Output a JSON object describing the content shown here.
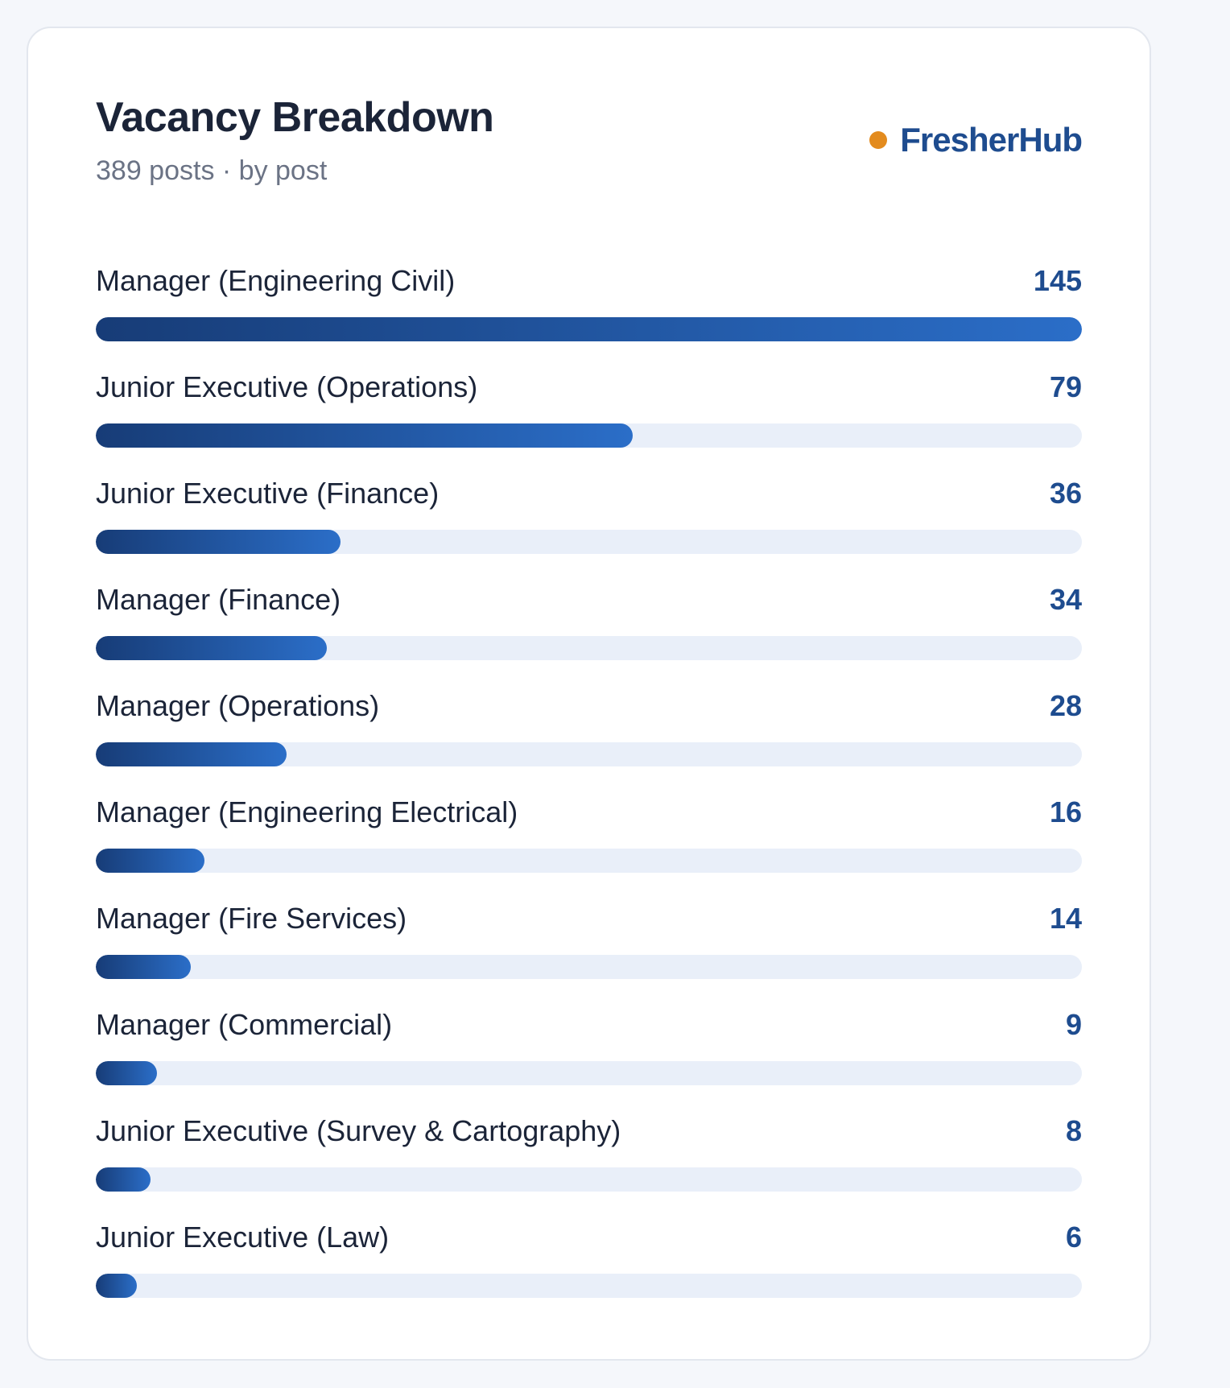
{
  "header": {
    "title": "Vacancy Breakdown",
    "subtitle": "389 posts · by post"
  },
  "brand": {
    "name": "FresherHub",
    "dot_color": "#e38b1e"
  },
  "colors": {
    "bar_start": "#173c77",
    "bar_end": "#2b6ec8",
    "track": "#e9eff9",
    "value_text": "#1e4c8f"
  },
  "chart_data": {
    "type": "bar",
    "orientation": "horizontal",
    "title": "Vacancy Breakdown",
    "subtitle": "389 posts · by post",
    "xlim": [
      0,
      145
    ],
    "categories": [
      "Manager (Engineering Civil)",
      "Junior Executive (Operations)",
      "Junior Executive (Finance)",
      "Manager (Finance)",
      "Manager (Operations)",
      "Manager (Engineering Electrical)",
      "Manager (Fire Services)",
      "Manager (Commercial)",
      "Junior Executive (Survey & Cartography)",
      "Junior Executive (Law)"
    ],
    "values": [
      145,
      79,
      36,
      34,
      28,
      16,
      14,
      9,
      8,
      6
    ],
    "value_labels": [
      "145",
      "79",
      "36",
      "34",
      "28",
      "16",
      "14",
      "9",
      "8",
      "6"
    ],
    "grid": false,
    "legend": "none"
  }
}
